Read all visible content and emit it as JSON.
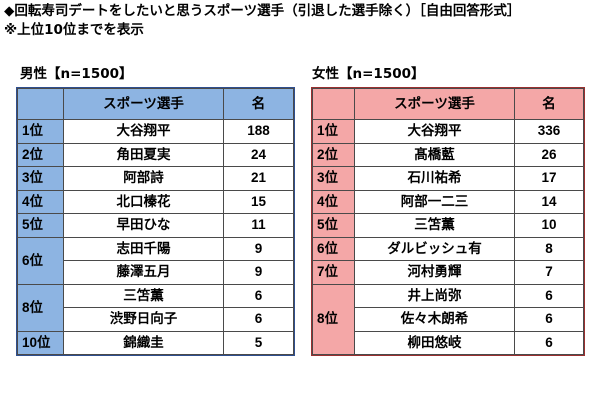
{
  "title": "◆回転寿司デートをしたいと思うスポーツ選手（引退した選手除く）［自由回答形式］",
  "note": "※上位10位までを表示",
  "male": {
    "label": "男性【n=1500】",
    "headers": {
      "name": "スポーツ選手",
      "count": "名"
    },
    "rows": [
      {
        "rank": "1位",
        "name": "大谷翔平",
        "count": "188"
      },
      {
        "rank": "2位",
        "name": "角田夏実",
        "count": "24"
      },
      {
        "rank": "3位",
        "name": "阿部詩",
        "count": "21"
      },
      {
        "rank": "4位",
        "name": "北口榛花",
        "count": "15"
      },
      {
        "rank": "5位",
        "name": "早田ひな",
        "count": "11"
      },
      {
        "rank": "6位",
        "name": "志田千陽",
        "count": "9"
      },
      {
        "rank": "",
        "name": "藤澤五月",
        "count": "9"
      },
      {
        "rank": "8位",
        "name": "三笘薫",
        "count": "6"
      },
      {
        "rank": "",
        "name": "渋野日向子",
        "count": "6"
      },
      {
        "rank": "10位",
        "name": "錦織圭",
        "count": "5"
      }
    ]
  },
  "female": {
    "label": "女性【n=1500】",
    "headers": {
      "name": "スポーツ選手",
      "count": "名"
    },
    "rows": [
      {
        "rank": "1位",
        "name": "大谷翔平",
        "count": "336"
      },
      {
        "rank": "2位",
        "name": "髙橋藍",
        "count": "26"
      },
      {
        "rank": "3位",
        "name": "石川祐希",
        "count": "17"
      },
      {
        "rank": "4位",
        "name": "阿部一二三",
        "count": "14"
      },
      {
        "rank": "5位",
        "name": "三笘薫",
        "count": "10"
      },
      {
        "rank": "6位",
        "name": "ダルビッシュ有",
        "count": "8"
      },
      {
        "rank": "7位",
        "name": "河村勇輝",
        "count": "7"
      },
      {
        "rank": "8位",
        "name": "井上尚弥",
        "count": "6"
      },
      {
        "rank": "",
        "name": "佐々木朗希",
        "count": "6"
      },
      {
        "rank": "",
        "name": "柳田悠岐",
        "count": "6"
      }
    ]
  },
  "colors": {
    "male_header": "#8db4e2",
    "female_header": "#f4a7a7"
  }
}
